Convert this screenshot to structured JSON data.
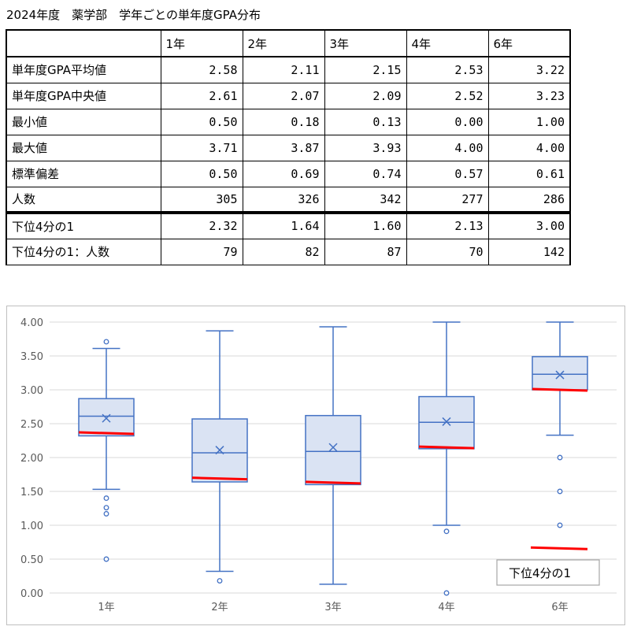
{
  "page": {
    "title": "2024年度　薬学部　学年ごとの単年度GPA分布"
  },
  "table": {
    "headers": [
      "",
      "1年",
      "2年",
      "3年",
      "4年",
      "6年"
    ],
    "rows": [
      {
        "label": "単年度GPA平均値",
        "values": [
          "2.58",
          "2.11",
          "2.15",
          "2.53",
          "3.22"
        ]
      },
      {
        "label": "単年度GPA中央値",
        "values": [
          "2.61",
          "2.07",
          "2.09",
          "2.52",
          "3.23"
        ]
      },
      {
        "label": "最小値",
        "values": [
          "0.50",
          "0.18",
          "0.13",
          "0.00",
          "1.00"
        ]
      },
      {
        "label": "最大値",
        "values": [
          "3.71",
          "3.87",
          "3.93",
          "4.00",
          "4.00"
        ]
      },
      {
        "label": "標準偏差",
        "values": [
          "0.50",
          "0.69",
          "0.74",
          "0.57",
          "0.61"
        ]
      },
      {
        "label": "人数",
        "values": [
          "305",
          "326",
          "342",
          "277",
          "286"
        ]
      },
      {
        "label": "下位4分の1",
        "values": [
          "2.32",
          "1.64",
          "1.60",
          "2.13",
          "3.00"
        ]
      },
      {
        "label": "下位4分の1：人数",
        "values": [
          "79",
          "82",
          "87",
          "70",
          "142"
        ]
      }
    ]
  },
  "chart_data": {
    "type": "box",
    "categories": [
      "1年",
      "2年",
      "3年",
      "4年",
      "6年"
    ],
    "ylim": [
      0,
      4
    ],
    "yticks": [
      "0.00",
      "0.50",
      "1.00",
      "1.50",
      "2.00",
      "2.50",
      "3.00",
      "3.50",
      "4.00"
    ],
    "grid": true,
    "boxes": [
      {
        "category": "1年",
        "whisker_low": 1.53,
        "q1": 2.32,
        "median": 2.61,
        "q3": 2.87,
        "whisker_high": 3.61,
        "mean": 2.58,
        "outliers": [
          3.71,
          1.4,
          1.26,
          1.17,
          0.5
        ],
        "marker": 2.36
      },
      {
        "category": "2年",
        "whisker_low": 0.32,
        "q1": 1.64,
        "median": 2.07,
        "q3": 2.57,
        "whisker_high": 3.87,
        "mean": 2.11,
        "outliers": [
          0.18
        ],
        "marker": 1.69
      },
      {
        "category": "3年",
        "whisker_low": 0.13,
        "q1": 1.6,
        "median": 2.09,
        "q3": 2.62,
        "whisker_high": 3.93,
        "mean": 2.15,
        "outliers": [],
        "marker": 1.63
      },
      {
        "category": "4年",
        "whisker_low": 1.0,
        "q1": 2.13,
        "median": 2.52,
        "q3": 2.9,
        "whisker_high": 4.0,
        "mean": 2.53,
        "outliers": [
          0.91,
          0.0
        ],
        "marker": 2.15
      },
      {
        "category": "6年",
        "whisker_low": 2.33,
        "q1": 3.0,
        "median": 3.23,
        "q3": 3.49,
        "whisker_high": 4.0,
        "mean": 3.22,
        "outliers": [
          2.0,
          1.5,
          1.0
        ],
        "marker": 3.0
      }
    ],
    "extra_marker": 0.66,
    "legend": {
      "text": "下位4分の1",
      "position": "bottom-right"
    },
    "colors": {
      "box_stroke": "#4472c4",
      "box_fill": "#dae3f3",
      "marker": "#ff0000",
      "grid": "#d9d9d9"
    }
  }
}
